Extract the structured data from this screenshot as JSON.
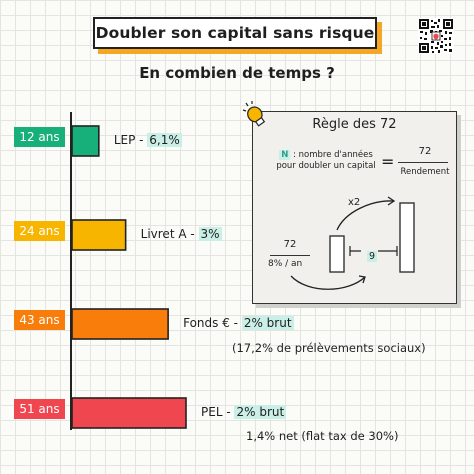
{
  "header": {
    "title": "Doubler son capital sans risque",
    "subtitle": "En combien de temps ?"
  },
  "colors": {
    "accent": "#f5a623",
    "highlight": "#c9efe6",
    "lep": "#17b07a",
    "livret": "#f7b500",
    "fonds": "#f97d0b",
    "pel": "#f0464f"
  },
  "chart_data": {
    "type": "bar",
    "orientation": "horizontal",
    "categories": [
      "LEP",
      "Livret A",
      "Fonds €",
      "PEL"
    ],
    "values": [
      12,
      24,
      43,
      51
    ],
    "value_labels": [
      "12 ans",
      "24 ans",
      "43 ans",
      "51 ans"
    ],
    "bar_colors": [
      "#17b07a",
      "#f7b500",
      "#f97d0b",
      "#f0464f"
    ],
    "xlim": [
      0,
      51
    ],
    "grid": true,
    "labels": [
      {
        "name": "LEP - ",
        "rate": "6,1%",
        "note": ""
      },
      {
        "name": "Livret A - ",
        "rate": "3%",
        "note": ""
      },
      {
        "name": "Fonds € - ",
        "rate": "2% brut",
        "note": "(17,2% de prélèvements sociaux)"
      },
      {
        "name": "PEL - ",
        "rate": "2% brut",
        "note": "1,4% net (flat tax de 30%)"
      }
    ]
  },
  "rule": {
    "title": "Règle des 72",
    "n_key": "N",
    "n_definition_line1": ": nombre d'années",
    "n_definition_line2": "pour doubler un capital",
    "equals": "=",
    "numerator": "72",
    "denominator": "Rendement",
    "x2": "x2",
    "example_numerator": "72",
    "example_rate": "8% / an",
    "example_years": "9"
  },
  "icons": {
    "qr": "qr-code-icon",
    "bulb": "lightbulb-icon"
  }
}
